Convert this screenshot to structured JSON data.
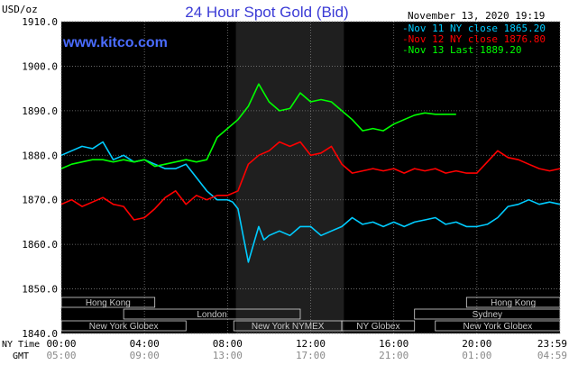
{
  "chart_data": {
    "type": "line",
    "title": "24 Hour Spot Gold (Bid)",
    "watermark": "www.kitco.com",
    "timestamp": "November 13, 2020 19:19",
    "y_unit": "USD/oz",
    "ylim": [
      1840,
      1910
    ],
    "y_ticks": [
      "1910.0",
      "1900.0",
      "1890.0",
      "1880.0",
      "1870.0",
      "1860.0",
      "1850.0",
      "1840.0"
    ],
    "y_tick_values": [
      1910,
      1900,
      1890,
      1880,
      1870,
      1860,
      1850,
      1840
    ],
    "x_range_hours": [
      0,
      24
    ],
    "x_label_ny": "NY Time",
    "x_label_gmt": "GMT",
    "x_ticks_ny": [
      "00:00",
      "04:00",
      "08:00",
      "12:00",
      "16:00",
      "20:00",
      "23:59"
    ],
    "x_ticks_gmt": [
      "05:00",
      "09:00",
      "13:00",
      "17:00",
      "21:00",
      "01:00",
      "04:59"
    ],
    "x_tick_hours": [
      0,
      4,
      8,
      12,
      16,
      20,
      24
    ],
    "grid": true,
    "legend_position": "top-right",
    "highlight_band_hours": [
      8.4,
      13.6
    ],
    "series": [
      {
        "name": "Nov 11 NY close 1865.20",
        "color": "#00ccff",
        "x": [
          0,
          0.5,
          1,
          1.5,
          2,
          2.5,
          3,
          3.5,
          4,
          4.5,
          5,
          5.5,
          6,
          6.5,
          7,
          7.5,
          8,
          8.25,
          8.5,
          8.75,
          9,
          9.25,
          9.5,
          9.75,
          10,
          10.5,
          11,
          11.5,
          12,
          12.5,
          13,
          13.5,
          14,
          14.5,
          15,
          15.5,
          16,
          16.5,
          17,
          17.5,
          18,
          18.5,
          19,
          19.5,
          20,
          20.5,
          21,
          21.5,
          22,
          22.5,
          23,
          23.5,
          24
        ],
        "values": [
          1880,
          1881,
          1882,
          1881.5,
          1883,
          1879,
          1880,
          1878.5,
          1879,
          1878,
          1877,
          1877,
          1878,
          1875,
          1872,
          1870,
          1870,
          1869.5,
          1868,
          1862,
          1856,
          1860,
          1864,
          1861,
          1862,
          1863,
          1862,
          1864,
          1864,
          1862,
          1863,
          1864,
          1866,
          1864.5,
          1865,
          1864,
          1865,
          1864,
          1865,
          1865.5,
          1866,
          1864.5,
          1865,
          1864,
          1864,
          1864.5,
          1866,
          1868.5,
          1869,
          1870,
          1869,
          1869.5,
          1869
        ]
      },
      {
        "name": "Nov 12 NY close 1876.80",
        "color": "#ff0000",
        "x": [
          0,
          0.5,
          1,
          1.5,
          2,
          2.5,
          3,
          3.5,
          4,
          4.5,
          5,
          5.5,
          6,
          6.5,
          7,
          7.5,
          8,
          8.5,
          9,
          9.5,
          10,
          10.5,
          11,
          11.5,
          12,
          12.5,
          13,
          13.5,
          14,
          14.5,
          15,
          15.5,
          16,
          16.5,
          17,
          17.5,
          18,
          18.5,
          19,
          19.5,
          20,
          20.5,
          21,
          21.5,
          22,
          22.5,
          23,
          23.5,
          24
        ],
        "values": [
          1869,
          1870,
          1868.5,
          1869.5,
          1870.5,
          1869,
          1868.5,
          1865.5,
          1866,
          1868,
          1870.5,
          1872,
          1869,
          1871,
          1870,
          1871,
          1871,
          1872,
          1878,
          1880,
          1881,
          1883,
          1882,
          1883,
          1880,
          1880.5,
          1882,
          1878,
          1876,
          1876.5,
          1877,
          1876.5,
          1877,
          1876,
          1877,
          1876.5,
          1877,
          1876,
          1876.5,
          1876,
          1876,
          1878.5,
          1881,
          1879.5,
          1879,
          1878,
          1877,
          1876.5,
          1877
        ]
      },
      {
        "name": "Nov 13 Last 1889.20",
        "color": "#00ff00",
        "x": [
          0,
          0.5,
          1,
          1.5,
          2,
          2.5,
          3,
          3.5,
          4,
          4.5,
          5,
          5.5,
          6,
          6.5,
          7,
          7.5,
          8,
          8.5,
          9,
          9.5,
          10,
          10.5,
          11,
          11.5,
          12,
          12.5,
          13,
          13.5,
          14,
          14.5,
          15,
          15.5,
          16,
          16.5,
          17,
          17.5,
          18,
          18.5,
          19
        ],
        "values": [
          1877,
          1878,
          1878.5,
          1879,
          1879,
          1878.5,
          1879,
          1878.5,
          1879,
          1877.5,
          1878,
          1878.5,
          1879,
          1878.5,
          1879,
          1884,
          1886,
          1888,
          1891,
          1896,
          1892,
          1890,
          1890.5,
          1894,
          1892,
          1892.5,
          1892,
          1890,
          1888,
          1885.5,
          1886,
          1885.5,
          1887,
          1888,
          1889,
          1889.5,
          1889.2,
          1889.2,
          1889.2
        ]
      }
    ],
    "sessions": {
      "row1": [
        {
          "label": "Hong Kong",
          "start": 0,
          "end": 4.5
        },
        {
          "label": "Hong Kong",
          "start": 19.5,
          "end": 24
        }
      ],
      "row2": [
        {
          "label": "London",
          "start": 3,
          "end": 11.5
        },
        {
          "label": "Sydney",
          "start": 17,
          "end": 24
        }
      ],
      "row3": [
        {
          "label": "New York Globex",
          "start": 0,
          "end": 6
        },
        {
          "label": "New York NYMEX",
          "start": 8.3,
          "end": 13.5
        },
        {
          "label": "NY Globex",
          "start": 13.5,
          "end": 17
        },
        {
          "label": "New York Globex",
          "start": 18,
          "end": 24
        }
      ]
    }
  }
}
